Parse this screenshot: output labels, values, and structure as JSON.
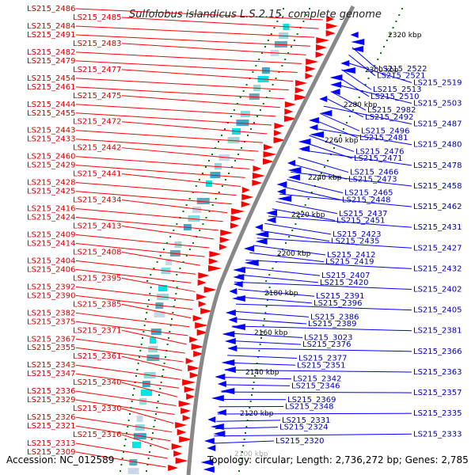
{
  "title": "Sulfolobus islandicus L.S.2.15, complete genome",
  "footer": {
    "accession_label": "Accession:",
    "accession": "NC_012589",
    "topology_label": "Topology:",
    "topology": "circular",
    "length_label": "Length:",
    "length": "2,736,272 bp",
    "genes_label": "Genes:",
    "genes": "2,785"
  },
  "scale_labels": [
    "2320 kbp",
    "2300 kbp",
    "2280 kbp",
    "2260 kbp",
    "2240 kbp",
    "2220 kbp",
    "2200 kbp",
    "2180 kbp",
    "2160 kbp",
    "2140 kbp",
    "2120 kbp",
    "2100 kbp"
  ],
  "colors": {
    "forward_gene": "#ff0000",
    "reverse_gene": "#0000ff",
    "forward_label": "#d40000",
    "reverse_label": "#0000b4",
    "backbone": "#888888",
    "tick": "#007a00",
    "cog_feature": "#00e5e5"
  },
  "labels_forward": [
    "LS215_2486",
    "LS215_2485",
    "LS215_2484",
    "LS215_2491",
    "LS215_2483",
    "LS215_2482",
    "LS215_2479",
    "LS215_2477",
    "LS215_2454",
    "LS215_2461",
    "LS215_2475",
    "LS215_2444",
    "LS215_2455",
    "LS215_2472",
    "LS215_2443",
    "LS215_2433",
    "LS215_2442",
    "LS215_2460",
    "LS215_2429",
    "LS215_2441",
    "LS215_2428",
    "LS215_2425",
    "LS215_2434",
    "LS215_2416",
    "LS215_2424",
    "LS215_2413",
    "LS215_2409",
    "LS215_2414",
    "LS215_2408",
    "LS215_2404",
    "LS215_2406",
    "LS215_2395",
    "LS215_2392",
    "LS215_2390",
    "LS215_2385",
    "LS215_2382",
    "LS215_2375",
    "LS215_2371",
    "LS215_2367",
    "LS215_2355",
    "LS215_2361",
    "LS215_2343",
    "LS215_2347",
    "LS215_2340",
    "LS215_2336",
    "LS215_2329",
    "LS215_2330",
    "LS215_2326",
    "LS215_2321",
    "LS215_2316",
    "LS215_2313",
    "LS215_2309"
  ],
  "labels_reverse": [
    "LS215_2522",
    "LS215_2521",
    "LS215_2519",
    "LS215_2513",
    "LS215_2510",
    "LS215_2503",
    "LS215_2982",
    "LS215_2492",
    "LS215_2487",
    "LS215_2496",
    "LS215_2481",
    "LS215_2480",
    "LS215_2476",
    "LS215_2471",
    "LS215_2478",
    "LS215_2466",
    "LS215_2473",
    "LS215_2458",
    "LS215_2465",
    "LS215_2448",
    "LS215_2462",
    "LS215_2437",
    "LS215_2451",
    "LS215_2431",
    "LS215_2423",
    "LS215_2435",
    "LS215_2427",
    "LS215_2412",
    "LS215_2419",
    "LS215_2432",
    "LS215_2407",
    "LS215_2420",
    "LS215_2402",
    "LS215_2391",
    "LS215_2396",
    "LS215_2405",
    "LS215_2386",
    "LS215_2389",
    "LS215_2381",
    "LS215_3023",
    "LS215_2376",
    "LS215_2366",
    "LS215_2377",
    "LS215_2351",
    "LS215_2363",
    "LS215_2342",
    "LS215_2346",
    "LS215_2357",
    "LS215_2369",
    "LS215_2348",
    "LS215_2335",
    "LS215_2331",
    "LS215_2324",
    "LS215_2333",
    "LS215_2320"
  ]
}
